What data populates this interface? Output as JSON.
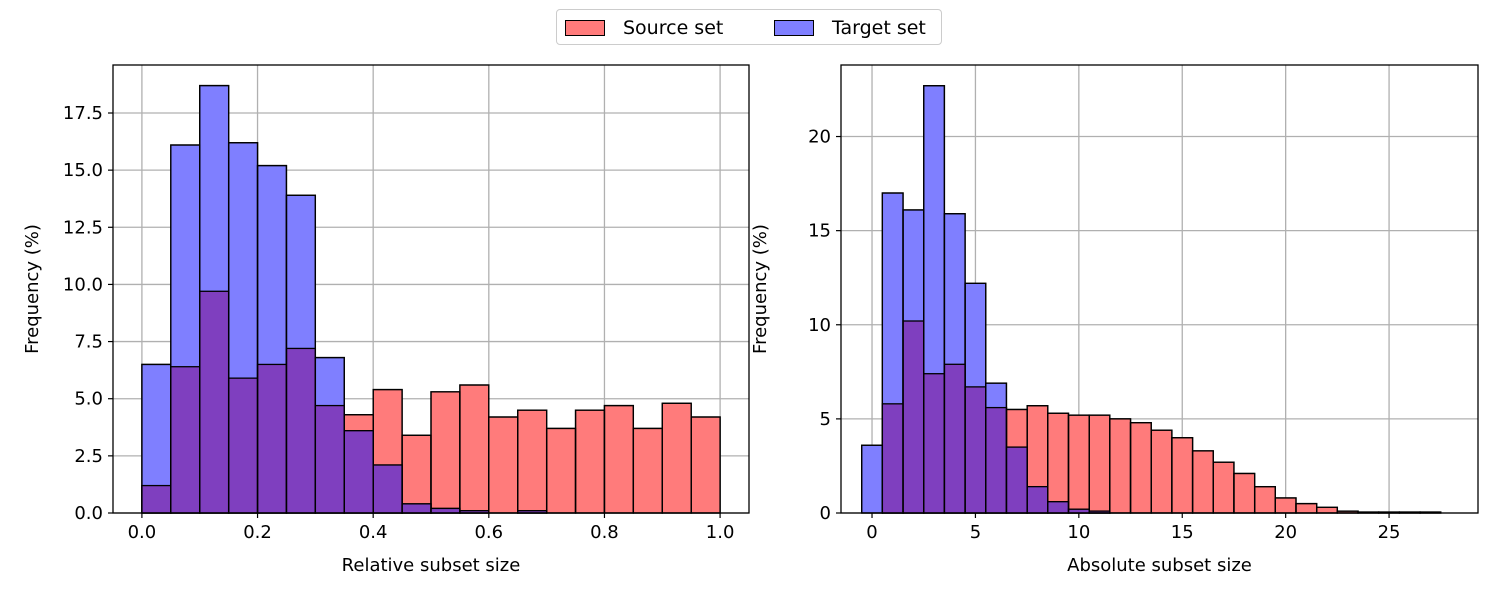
{
  "legend": {
    "source_label": "Source set",
    "target_label": "Target set",
    "source_color": "#ff7b7b",
    "target_color": "#7f7fff",
    "overlap_color": "#7f3fbf",
    "edge_color": "#000000",
    "placement": "upper center, above plots"
  },
  "chart_data": [
    {
      "type": "bar",
      "subtype": "overlaid histogram",
      "xlabel": "Relative subset size",
      "ylabel": "Frequency (%)",
      "xlim": [
        -0.05,
        1.05
      ],
      "ylim": [
        0,
        19.6
      ],
      "xticks": [
        "0.0",
        "0.2",
        "0.4",
        "0.6",
        "0.8",
        "1.0"
      ],
      "xtick_values": [
        0,
        0.2,
        0.4,
        0.6,
        0.8,
        1.0
      ],
      "yticks": [
        "0.0",
        "2.5",
        "5.0",
        "7.5",
        "10.0",
        "12.5",
        "15.0",
        "17.5"
      ],
      "ytick_values": [
        0,
        2.5,
        5,
        7.5,
        10,
        12.5,
        15,
        17.5
      ],
      "grid": true,
      "bin_edges": [
        0.0,
        0.05,
        0.1,
        0.15,
        0.2,
        0.25,
        0.3,
        0.35,
        0.4,
        0.45,
        0.5,
        0.55,
        0.6,
        0.65,
        0.7,
        0.75,
        0.8,
        0.85,
        0.9,
        0.95,
        1.0
      ],
      "series": [
        {
          "name": "Source set",
          "values": [
            1.2,
            6.4,
            9.7,
            5.9,
            6.5,
            7.2,
            4.7,
            4.3,
            5.4,
            3.4,
            5.3,
            5.6,
            4.2,
            4.5,
            3.7,
            4.5,
            4.7,
            3.7,
            4.8,
            4.2
          ]
        },
        {
          "name": "Target set",
          "values": [
            6.5,
            16.1,
            18.7,
            16.2,
            15.2,
            13.9,
            6.8,
            3.6,
            2.1,
            0.4,
            0.2,
            0.1,
            0.0,
            0.1,
            0.0,
            0.0,
            0.0,
            0.0,
            0.0,
            0.0
          ]
        }
      ]
    },
    {
      "type": "bar",
      "subtype": "overlaid histogram",
      "xlabel": "Absolute subset size",
      "ylabel": "Frequency (%)",
      "xlim": [
        -1.5,
        29.3
      ],
      "ylim": [
        0,
        23.8
      ],
      "xticks": [
        "0",
        "5",
        "10",
        "15",
        "20",
        "25"
      ],
      "xtick_values": [
        0,
        5,
        10,
        15,
        20,
        25
      ],
      "yticks": [
        "0",
        "5",
        "10",
        "15",
        "20"
      ],
      "ytick_values": [
        0,
        5,
        10,
        15,
        20
      ],
      "grid": true,
      "bin_edges": [
        -0.5,
        0.5,
        1.5,
        2.5,
        3.5,
        4.5,
        5.5,
        6.5,
        7.5,
        8.5,
        9.5,
        10.5,
        11.5,
        12.5,
        13.5,
        14.5,
        15.5,
        16.5,
        17.5,
        18.5,
        19.5,
        20.5,
        21.5,
        22.5,
        23.5,
        24.5,
        25.5,
        26.5,
        27.5
      ],
      "series": [
        {
          "name": "Source set",
          "values": [
            0.0,
            5.8,
            10.2,
            7.4,
            7.9,
            6.7,
            5.6,
            5.5,
            5.7,
            5.3,
            5.2,
            5.2,
            5.0,
            4.8,
            4.4,
            4.0,
            3.3,
            2.7,
            2.1,
            1.4,
            0.8,
            0.5,
            0.3,
            0.1,
            0.05,
            0.05,
            0.05,
            0.05
          ]
        },
        {
          "name": "Target set",
          "values": [
            3.6,
            17.0,
            16.1,
            22.7,
            15.9,
            12.2,
            6.9,
            3.5,
            1.4,
            0.6,
            0.2,
            0.1,
            0.0,
            0.0,
            0.0,
            0.0,
            0.0,
            0.0,
            0.0,
            0.0,
            0.0,
            0.0,
            0.0,
            0.0,
            0.0,
            0.0,
            0.0,
            0.0
          ]
        }
      ]
    }
  ]
}
